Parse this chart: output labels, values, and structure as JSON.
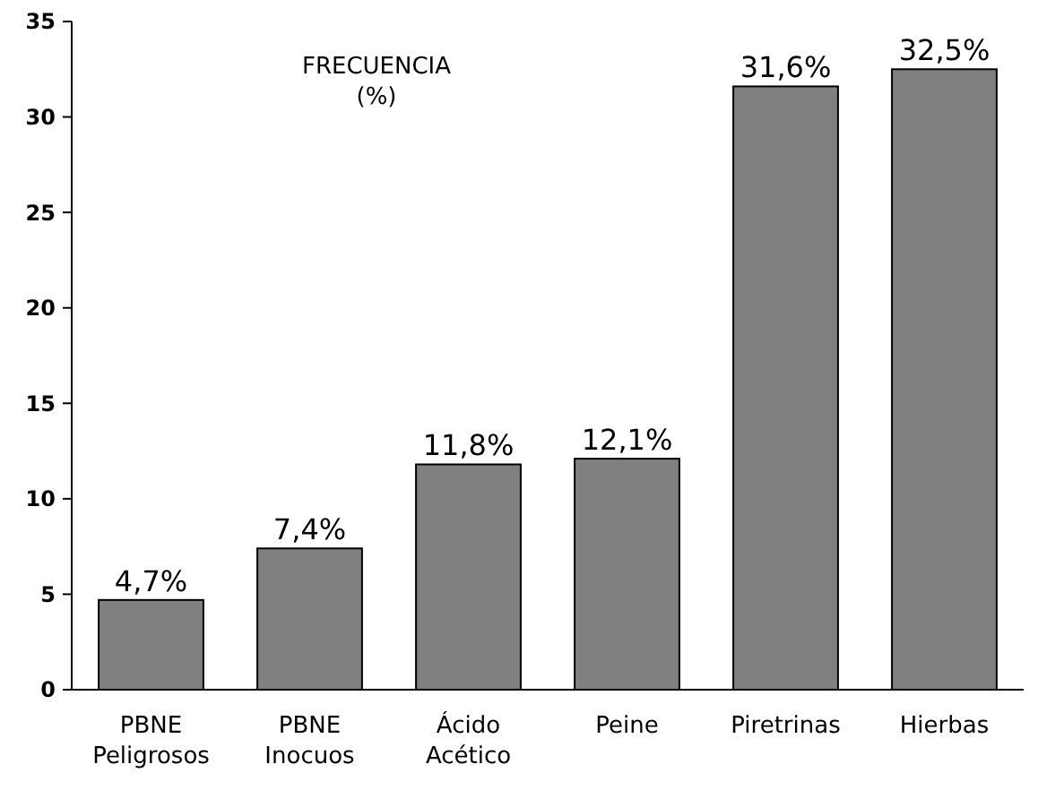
{
  "chart_data": {
    "type": "bar",
    "title": "FRECUENCIA\n(%)",
    "categories": [
      "PBNE\nPeligrosos",
      "PBNE\nInocuos",
      "Ácido\nAcético",
      "Peine",
      "Piretrinas",
      "Hierbas"
    ],
    "values": [
      4.7,
      7.4,
      11.8,
      12.1,
      31.6,
      32.5
    ],
    "value_labels": [
      "4,7%",
      "7,4%",
      "11,8%",
      "12,1%",
      "31,6%",
      "32,5%"
    ],
    "color": "#808080",
    "ylim": [
      0,
      35
    ],
    "yticks": [
      0,
      5,
      10,
      15,
      20,
      25,
      30,
      35
    ],
    "grid": false
  }
}
